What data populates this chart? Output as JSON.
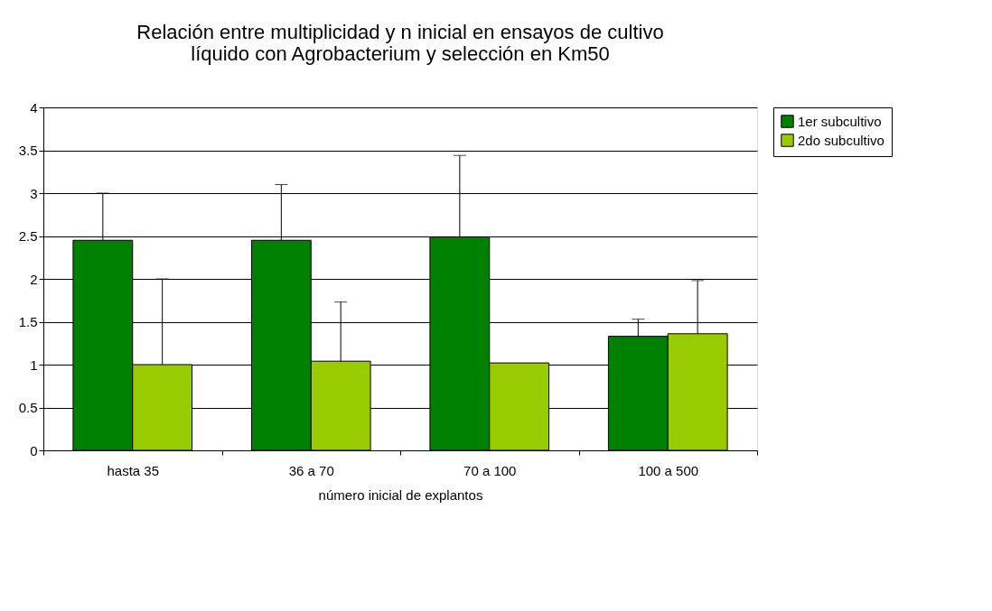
{
  "chart_data": {
    "type": "bar",
    "title": [
      "Relación entre multiplicidad y n inicial en ensayos de cultivo",
      "líquido con Agrobacterium  y selección en Km50"
    ],
    "xlabel": "número inicial de explantos",
    "categories": [
      "hasta 35",
      "36 a 70",
      "70 a 100",
      "100 a 500"
    ],
    "series": [
      {
        "name": "1er subcultivo",
        "color": "#008000",
        "values": [
          2.45,
          2.45,
          2.49,
          1.33
        ],
        "errors": [
          [
            2.45,
            3.0
          ],
          [
            2.45,
            3.1
          ],
          [
            2.49,
            3.44
          ],
          [
            1.33,
            1.53
          ]
        ]
      },
      {
        "name": "2do subcultivo",
        "color": "#99cc00",
        "values": [
          1.0,
          1.04,
          1.02,
          1.36
        ],
        "errors": [
          [
            1.0,
            2.0
          ],
          [
            1.04,
            1.73
          ],
          null,
          [
            1.36,
            1.98
          ]
        ]
      }
    ],
    "ylim": [
      0,
      4
    ],
    "yticks": [
      0,
      0.5,
      1,
      1.5,
      2,
      2.5,
      3,
      3.5,
      4
    ],
    "grid": "y",
    "legend": "right"
  }
}
